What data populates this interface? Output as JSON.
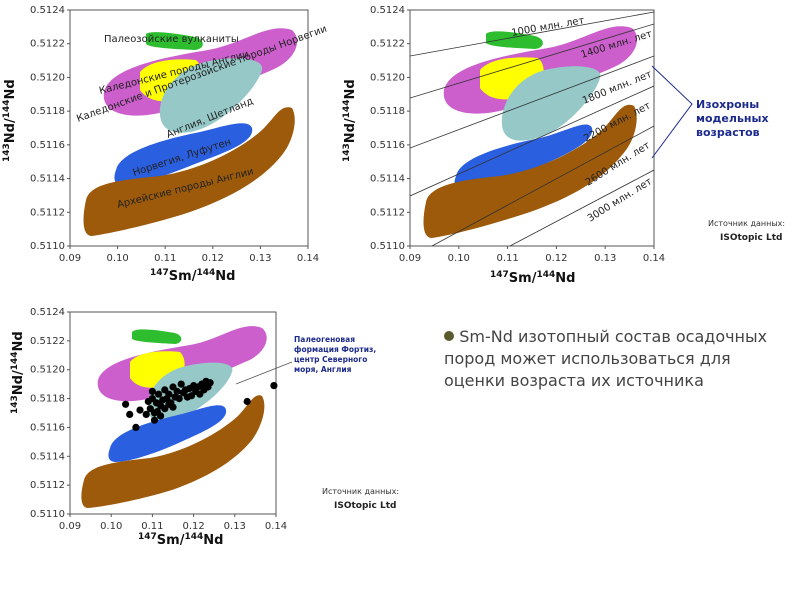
{
  "chart_data": [
    {
      "type": "scatter",
      "xlabel_main": "Sm/",
      "xlabel_sup1": "147",
      "xlabel_sup2": "144",
      "xlabel_main2": "Nd",
      "ylabel_sup1": "143",
      "ylabel_main": "Nd/",
      "ylabel_sup2": "144",
      "ylabel_main2": "Nd",
      "xlim": [
        0.09,
        0.14
      ],
      "ylim": [
        0.511,
        0.5124
      ],
      "xticks": [
        "0.09",
        "0.10",
        "0.11",
        "0.12",
        "0.13",
        "0.14"
      ],
      "yticks": [
        "0.5110",
        "0.5112",
        "0.5114",
        "0.5116",
        "0.5118",
        "0.5120",
        "0.5122",
        "0.5124"
      ],
      "regions": [
        {
          "label": "Палеозойские вулканиты",
          "color": "#2ebd2e"
        },
        {
          "label": "Каледонские породы Англии",
          "color": "#cc5fcc"
        },
        {
          "label": "Каледонские и Протерозойские породы Норвегии",
          "color": "#ffff00"
        },
        {
          "label": "Англия, Шетланд",
          "color": "#96c8c8"
        },
        {
          "label": "Норвегия, Луфутен",
          "color": "#2a5fe0"
        },
        {
          "label": "Архейские породы Англии",
          "color": "#9c5a0a"
        }
      ]
    },
    {
      "type": "scatter",
      "isochrons": [
        {
          "label": "1000 млн. лет",
          "age_ma": 1000
        },
        {
          "label": "1400 млн. лет",
          "age_ma": 1400
        },
        {
          "label": "1800 млн. лет",
          "age_ma": 1800
        },
        {
          "label": "2200 млн. лет",
          "age_ma": 2200
        },
        {
          "label": "2600 млн. лет",
          "age_ma": 2600
        },
        {
          "label": "3000 млн. лет",
          "age_ma": 3000
        }
      ],
      "callout": [
        "Изохроны",
        "модельных",
        "возрастов"
      ],
      "source": [
        "Источник данных:",
        "ISOtopic Ltd"
      ]
    },
    {
      "type": "scatter",
      "series_callout": [
        "Палеогеновая",
        "формация Фортиз,",
        "центр Северного",
        "моря, Англия"
      ],
      "points": [
        [
          0.1035,
          0.51176
        ],
        [
          0.106,
          0.5116
        ],
        [
          0.1045,
          0.51169
        ],
        [
          0.107,
          0.51172
        ],
        [
          0.1085,
          0.51169
        ],
        [
          0.109,
          0.51178
        ],
        [
          0.1095,
          0.51173
        ],
        [
          0.11,
          0.5118
        ],
        [
          0.1105,
          0.5117
        ],
        [
          0.111,
          0.51177
        ],
        [
          0.1115,
          0.51183
        ],
        [
          0.112,
          0.51175
        ],
        [
          0.1125,
          0.51179
        ],
        [
          0.113,
          0.51186
        ],
        [
          0.1135,
          0.5118
        ],
        [
          0.114,
          0.51183
        ],
        [
          0.1145,
          0.51177
        ],
        [
          0.115,
          0.51188
        ],
        [
          0.1155,
          0.51181
        ],
        [
          0.116,
          0.51185
        ],
        [
          0.1165,
          0.5118
        ],
        [
          0.117,
          0.5119
        ],
        [
          0.1175,
          0.51184
        ],
        [
          0.118,
          0.51186
        ],
        [
          0.1185,
          0.51181
        ],
        [
          0.119,
          0.51187
        ],
        [
          0.1195,
          0.51182
        ],
        [
          0.12,
          0.51189
        ],
        [
          0.1205,
          0.51185
        ],
        [
          0.121,
          0.51188
        ],
        [
          0.1215,
          0.51183
        ],
        [
          0.122,
          0.5119
        ],
        [
          0.1225,
          0.51186
        ],
        [
          0.123,
          0.51192
        ],
        [
          0.1235,
          0.51188
        ],
        [
          0.124,
          0.51191
        ],
        [
          0.1105,
          0.51165
        ],
        [
          0.112,
          0.51168
        ],
        [
          0.113,
          0.51173
        ],
        [
          0.11,
          0.51185
        ],
        [
          0.1112,
          0.51171
        ],
        [
          0.114,
          0.51176
        ],
        [
          0.115,
          0.51174
        ],
        [
          0.133,
          0.51178
        ],
        [
          0.1395,
          0.51189
        ]
      ],
      "source": [
        "Источник данных:",
        "ISOtopic Ltd"
      ]
    }
  ],
  "bullet": "Sm-Nd изотопный состав осадочных пород может использоваться для оценки возраста их источника",
  "colors": {
    "green": "#2ebd2e",
    "magenta": "#cc5fcc",
    "yellow": "#ffff00",
    "teal": "#96c8c8",
    "blue": "#2a5fe0",
    "brown": "#9c5a0a"
  }
}
